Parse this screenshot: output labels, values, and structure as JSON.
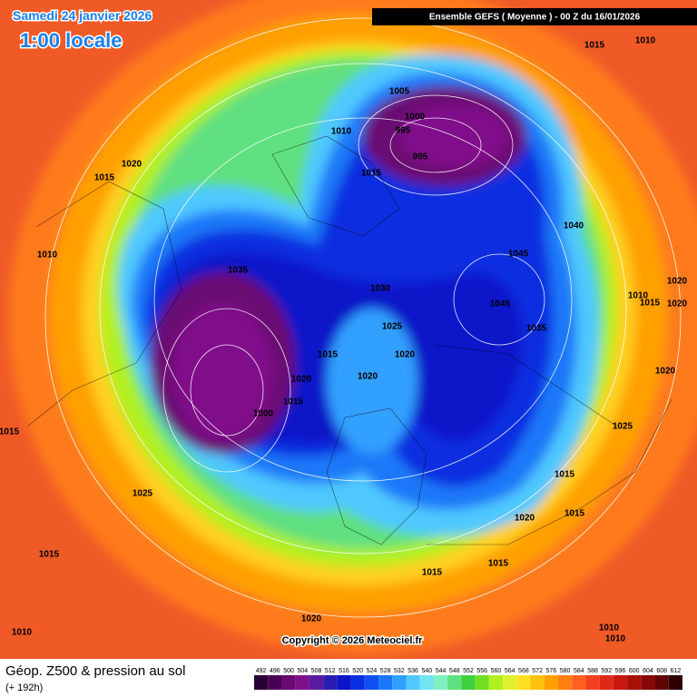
{
  "header": {
    "date": "Samedi 24 janvier 2026",
    "local_time": "1:00 locale",
    "run": "Ensemble GEFS  ( Moyenne )  -  00 Z du 16/01/2026"
  },
  "map": {
    "copyright": "Copyright © 2026 Meteociel.fr",
    "isobar_labels": [
      1015,
      1010,
      1005,
      1000,
      995,
      995,
      1010,
      1020,
      1015,
      1015,
      1040,
      1045,
      1010,
      1035,
      1030,
      1045,
      1025,
      1035,
      1010,
      1015,
      1020,
      1020,
      1015,
      1020,
      1020,
      1020,
      1020,
      1015,
      1000,
      1015,
      1025,
      1025,
      1015,
      1020,
      1015,
      1015,
      1015,
      1015,
      1020,
      1010,
      1010,
      1010
    ]
  },
  "footer": {
    "title": "Géop. Z500 & pression au sol",
    "lead": "(+ 192h)",
    "scale": {
      "values": [
        492,
        496,
        500,
        504,
        508,
        512,
        516,
        520,
        524,
        528,
        532,
        536,
        540,
        544,
        548,
        552,
        556,
        560,
        564,
        568,
        572,
        576,
        580,
        584,
        588,
        592,
        596,
        600,
        604,
        608,
        612
      ],
      "colors": [
        "#2b0036",
        "#4a0056",
        "#6a0a72",
        "#80108a",
        "#5a1aa0",
        "#2a1eb0",
        "#0a14c8",
        "#0a2ee0",
        "#1050f0",
        "#1a78f8",
        "#30a0ff",
        "#50c8ff",
        "#70e4f0",
        "#80f0c0",
        "#60e080",
        "#40d040",
        "#70e020",
        "#b0f020",
        "#e0f030",
        "#ffe020",
        "#ffc010",
        "#ffa000",
        "#ff8010",
        "#ff6020",
        "#f04020",
        "#e02818",
        "#c81810",
        "#a81008",
        "#880808",
        "#600404",
        "#300000"
      ]
    }
  }
}
